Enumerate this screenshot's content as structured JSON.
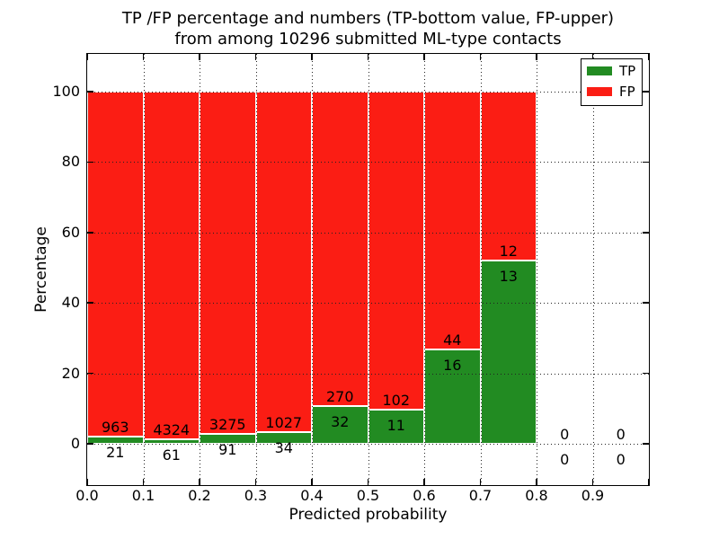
{
  "header": {
    "title_line1": "TP /FP percentage and numbers (TP-bottom value, FP-upper)",
    "title_line2": "from among 10296 submitted ML-type contacts"
  },
  "chart_data": {
    "type": "bar",
    "stacked": true,
    "normalized": "each bin scaled to 100%",
    "title": "TP /FP percentage and numbers (TP-bottom value, FP-upper)\nfrom among 10296 submitted ML-type contacts",
    "xlabel": "Predicted probability",
    "ylabel": "Percentage",
    "total_contacts": 10296,
    "bins": [
      "0.0-0.1",
      "0.1-0.2",
      "0.2-0.3",
      "0.3-0.4",
      "0.4-0.5",
      "0.5-0.6",
      "0.6-0.7",
      "0.7-0.8",
      "0.8-0.9",
      "0.9-1.0"
    ],
    "series": [
      {
        "name": "TP",
        "color": "#228B22",
        "values": [
          21,
          61,
          91,
          34,
          32,
          11,
          16,
          13,
          0,
          0
        ]
      },
      {
        "name": "FP",
        "color": "#FB1D14",
        "values": [
          963,
          4324,
          3275,
          1027,
          270,
          102,
          44,
          12,
          0,
          0
        ]
      }
    ],
    "tp_percent_of_bin": [
      2.13,
      1.39,
      2.7,
      3.2,
      10.6,
      9.73,
      26.67,
      52.0,
      0,
      0
    ],
    "x_ticks": [
      "0.0",
      "0.1",
      "0.2",
      "0.3",
      "0.4",
      "0.5",
      "0.6",
      "0.7",
      "0.8",
      "0.9"
    ],
    "y_ticks": [
      0,
      20,
      40,
      60,
      80,
      100
    ],
    "xlim": [
      0.0,
      1.0
    ],
    "ylim": [
      -12.5,
      111.5
    ],
    "grid": "dotted, both axes, drawn over bars",
    "legend_position": "upper right"
  }
}
